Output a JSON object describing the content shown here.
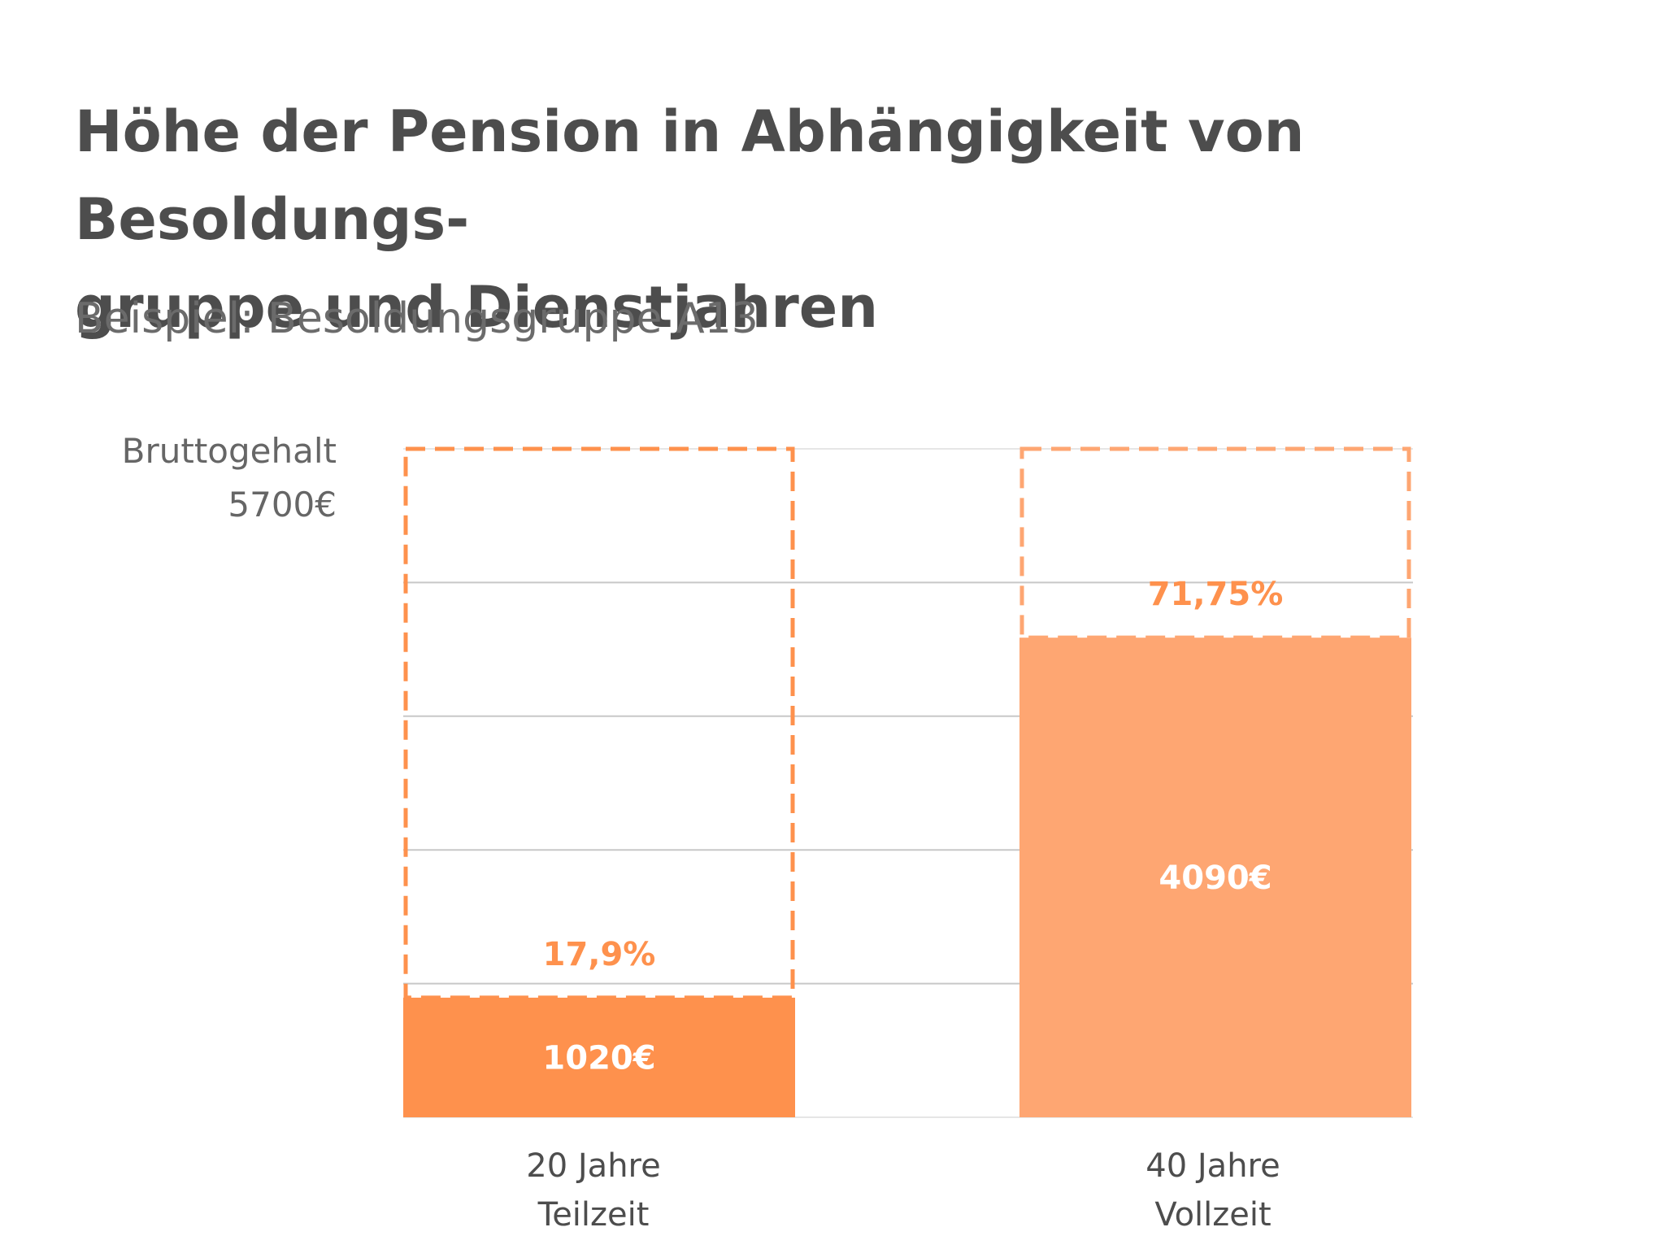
{
  "title_line1": "Höhe der Pension in Abhängigkeit von Besoldungs-",
  "title_line2": "gruppe und Dienstjahren",
  "subtitle": "Beispiel: Besoldungsgruppe A13",
  "chart_data": {
    "type": "bar",
    "reference": {
      "label": "Bruttogehalt",
      "value": 5700,
      "value_label": "5700€"
    },
    "categories": [
      {
        "line1": "20 Jahre",
        "line2": "Teilzeit"
      },
      {
        "line1": "40 Jahre",
        "line2": "Vollzeit"
      }
    ],
    "values": [
      1020,
      4090
    ],
    "value_labels": [
      "1020€",
      "4090€"
    ],
    "percent_labels": [
      "17,9%",
      "71,75%"
    ],
    "ylim": [
      0,
      5700
    ],
    "grid": true,
    "colors": {
      "bars": [
        "#fe914d",
        "#fea672"
      ],
      "reference_outline": [
        "#fe914d",
        "#fea672"
      ],
      "percent_text": "#fe914d",
      "value_text": "#ffffff",
      "grid": "#c8c8c8"
    }
  }
}
